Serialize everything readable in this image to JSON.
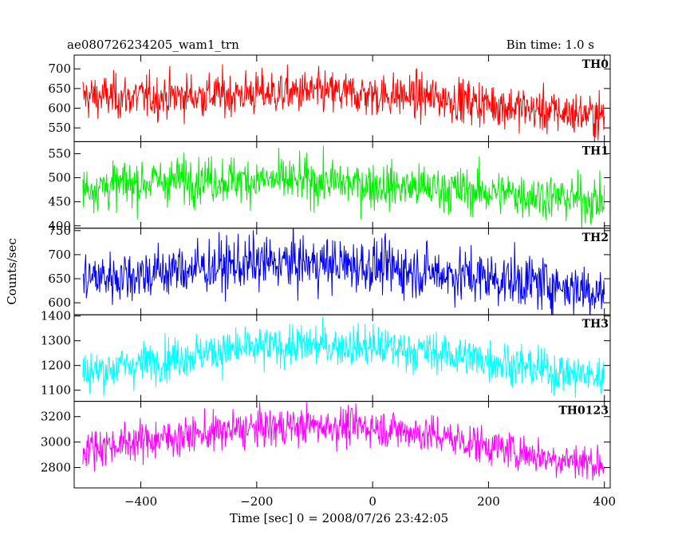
{
  "chart_data": {
    "type": "line",
    "title": "ae080726234205_wam1_trn",
    "bin_time_label": "Bin time: 1.0 s",
    "xlabel": "Time [sec] 0 = 2008/07/26 23:42:05",
    "ylabel": "Counts/sec",
    "xlim": [
      -515,
      410
    ],
    "x_ticks": [
      -400,
      -200,
      0,
      200,
      400
    ],
    "grid": false,
    "panels": [
      {
        "name": "TH0",
        "color": "#ff0000",
        "ylim": [
          515,
          735
        ],
        "y_ticks": [
          550,
          600,
          650,
          700
        ],
        "x": [
          -500,
          -400,
          -300,
          -200,
          -100,
          0,
          100,
          200,
          300,
          400
        ],
        "mean": [
          630,
          628,
          632,
          638,
          640,
          635,
          628,
          612,
          592,
          580
        ],
        "noise": 28
      },
      {
        "name": "TH1",
        "color": "#00ee00",
        "ylim": [
          395,
          575
        ],
        "y_ticks": [
          400,
          450,
          500,
          550
        ],
        "x": [
          -500,
          -400,
          -300,
          -200,
          -100,
          0,
          100,
          200,
          300,
          400
        ],
        "mean": [
          478,
          490,
          498,
          495,
          492,
          485,
          478,
          470,
          462,
          450
        ],
        "noise": 24
      },
      {
        "name": "TH2",
        "color": "#0000ee",
        "ylim": [
          575,
          755
        ],
        "y_ticks": [
          600,
          650,
          700,
          750
        ],
        "x": [
          -500,
          -400,
          -300,
          -200,
          -100,
          0,
          100,
          200,
          300,
          400
        ],
        "mean": [
          650,
          660,
          672,
          682,
          682,
          676,
          664,
          652,
          640,
          622
        ],
        "noise": 28
      },
      {
        "name": "TH3",
        "color": "#00ffff",
        "ylim": [
          1055,
          1405
        ],
        "y_ticks": [
          1100,
          1200,
          1300,
          1400
        ],
        "x": [
          -500,
          -400,
          -300,
          -200,
          -100,
          0,
          100,
          200,
          300,
          400
        ],
        "mean": [
          1170,
          1210,
          1248,
          1272,
          1282,
          1276,
          1255,
          1222,
          1180,
          1150
        ],
        "noise": 42
      },
      {
        "name": "TH0123",
        "color": "#ff00ff",
        "ylim": [
          2640,
          3320
        ],
        "y_ticks": [
          2800,
          3000,
          3200
        ],
        "x": [
          -500,
          -400,
          -300,
          -200,
          -100,
          0,
          100,
          200,
          300,
          400
        ],
        "mean": [
          2950,
          3010,
          3060,
          3110,
          3130,
          3120,
          3060,
          2970,
          2880,
          2830
        ],
        "noise": 75
      }
    ]
  }
}
